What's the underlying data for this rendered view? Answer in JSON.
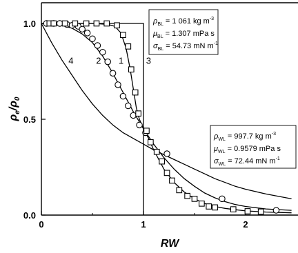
{
  "chart_data": {
    "type": "line",
    "xlabel": "RW",
    "ylabel_main": "ρ",
    "ylabel_sub1": "e",
    "ylabel_slash": "/",
    "ylabel_sub2": "0",
    "xlim": [
      0,
      2.45
    ],
    "ylim": [
      0,
      1.06
    ],
    "x_ticks": [
      0,
      1,
      2
    ],
    "x_tick_labels": [
      "0",
      "1",
      "2"
    ],
    "y_ticks": [
      0.0,
      0.5,
      1.0
    ],
    "y_tick_labels": [
      "0.0",
      "0.5",
      "1.0"
    ],
    "series": [
      {
        "label": "1",
        "style": "line",
        "points": [
          [
            0,
            1.0
          ],
          [
            0.5,
            1.0
          ],
          [
            0.65,
            0.995
          ],
          [
            0.72,
            0.985
          ],
          [
            0.78,
            0.95
          ],
          [
            0.83,
            0.87
          ],
          [
            0.87,
            0.76
          ],
          [
            0.9,
            0.66
          ],
          [
            0.93,
            0.56
          ],
          [
            0.96,
            0.5
          ],
          [
            1.0,
            0.45
          ],
          [
            1.05,
            0.4
          ],
          [
            1.1,
            0.34
          ],
          [
            1.2,
            0.24
          ],
          [
            1.3,
            0.17
          ],
          [
            1.4,
            0.12
          ],
          [
            1.5,
            0.085
          ],
          [
            1.6,
            0.06
          ],
          [
            1.7,
            0.045
          ],
          [
            1.8,
            0.035
          ],
          [
            1.9,
            0.028
          ],
          [
            2.0,
            0.022
          ],
          [
            2.2,
            0.016
          ],
          [
            2.45,
            0.012
          ]
        ]
      },
      {
        "label": "2",
        "style": "line",
        "points": [
          [
            0,
            1.0
          ],
          [
            0.1,
            0.995
          ],
          [
            0.2,
            0.99
          ],
          [
            0.3,
            0.975
          ],
          [
            0.4,
            0.945
          ],
          [
            0.5,
            0.9
          ],
          [
            0.6,
            0.83
          ],
          [
            0.7,
            0.74
          ],
          [
            0.8,
            0.64
          ],
          [
            0.9,
            0.54
          ],
          [
            1.0,
            0.45
          ],
          [
            1.1,
            0.37
          ],
          [
            1.2,
            0.3
          ],
          [
            1.3,
            0.24
          ],
          [
            1.4,
            0.19
          ],
          [
            1.5,
            0.15
          ],
          [
            1.6,
            0.115
          ],
          [
            1.7,
            0.09
          ],
          [
            1.8,
            0.07
          ],
          [
            1.9,
            0.055
          ],
          [
            2.0,
            0.045
          ],
          [
            2.2,
            0.032
          ],
          [
            2.45,
            0.025
          ]
        ]
      },
      {
        "label": "3",
        "style": "step",
        "points": [
          [
            0,
            1.0
          ],
          [
            1.0,
            1.0
          ],
          [
            1.0,
            0.0
          ],
          [
            2.45,
            0.0
          ]
        ]
      },
      {
        "label": "4",
        "style": "line",
        "points": [
          [
            0,
            1.0
          ],
          [
            0.1,
            0.9
          ],
          [
            0.2,
            0.81
          ],
          [
            0.3,
            0.73
          ],
          [
            0.4,
            0.65
          ],
          [
            0.5,
            0.58
          ],
          [
            0.6,
            0.52
          ],
          [
            0.7,
            0.47
          ],
          [
            0.8,
            0.43
          ],
          [
            0.9,
            0.4
          ],
          [
            1.0,
            0.37
          ],
          [
            1.1,
            0.34
          ],
          [
            1.2,
            0.315
          ],
          [
            1.3,
            0.29
          ],
          [
            1.4,
            0.265
          ],
          [
            1.5,
            0.24
          ],
          [
            1.6,
            0.215
          ],
          [
            1.7,
            0.19
          ],
          [
            1.8,
            0.17
          ],
          [
            1.9,
            0.15
          ],
          [
            2.0,
            0.135
          ],
          [
            2.2,
            0.11
          ],
          [
            2.45,
            0.085
          ]
        ]
      },
      {
        "label": "",
        "style": "circles",
        "points": [
          [
            0.05,
            1.0
          ],
          [
            0.12,
            1.0
          ],
          [
            0.18,
            1.0
          ],
          [
            0.25,
            0.995
          ],
          [
            0.3,
            0.99
          ],
          [
            0.36,
            0.985
          ],
          [
            0.4,
            0.97
          ],
          [
            0.45,
            0.95
          ],
          [
            0.5,
            0.92
          ],
          [
            0.55,
            0.885
          ],
          [
            0.6,
            0.85
          ],
          [
            0.65,
            0.8
          ],
          [
            0.7,
            0.74
          ],
          [
            0.75,
            0.68
          ],
          [
            0.8,
            0.62
          ],
          [
            0.85,
            0.57
          ],
          [
            0.9,
            0.52
          ],
          [
            0.96,
            0.47
          ],
          [
            1.02,
            0.43
          ],
          [
            1.23,
            0.32
          ],
          [
            1.77,
            0.085
          ],
          [
            2.3,
            0.025
          ]
        ]
      },
      {
        "label": "",
        "style": "squares",
        "points": [
          [
            0.08,
            1.0
          ],
          [
            0.12,
            1.0
          ],
          [
            0.23,
            1.0
          ],
          [
            0.33,
            1.0
          ],
          [
            0.44,
            1.0
          ],
          [
            0.54,
            1.0
          ],
          [
            0.64,
            1.0
          ],
          [
            0.74,
            0.99
          ],
          [
            0.8,
            0.94
          ],
          [
            0.85,
            0.88
          ],
          [
            0.88,
            0.76
          ],
          [
            0.92,
            0.64
          ],
          [
            0.95,
            0.53
          ],
          [
            1.03,
            0.44
          ],
          [
            1.07,
            0.38
          ],
          [
            1.13,
            0.33
          ],
          [
            1.18,
            0.28
          ],
          [
            1.23,
            0.22
          ],
          [
            1.28,
            0.18
          ],
          [
            1.35,
            0.13
          ],
          [
            1.43,
            0.1
          ],
          [
            1.5,
            0.085
          ],
          [
            1.57,
            0.06
          ],
          [
            1.64,
            0.045
          ],
          [
            1.7,
            0.04
          ],
          [
            1.88,
            0.03
          ],
          [
            2.02,
            0.02
          ],
          [
            2.15,
            0.018
          ]
        ]
      }
    ],
    "annotations": [
      {
        "rows": [
          {
            "sym": "ρ",
            "sub": "BL",
            "text": " = 1 061 kg m",
            "sup": "-3"
          },
          {
            "sym": "μ",
            "sub": "BL",
            "text": " = 1.307 mPa s",
            "sup": ""
          },
          {
            "sym": "σ",
            "sub": "BL",
            "text": " = 54.73 mN m",
            "sup": "-1"
          }
        ]
      },
      {
        "rows": [
          {
            "sym": "ρ",
            "sub": "WL",
            "text": " = 997.7 kg m",
            "sup": "-3"
          },
          {
            "sym": "μ",
            "sub": "WL",
            "text": " = 0.9579 mPa s",
            "sup": ""
          },
          {
            "sym": "σ",
            "sub": "WL",
            "text": " = 72.44 mN m",
            "sup": "-1"
          }
        ]
      }
    ]
  }
}
